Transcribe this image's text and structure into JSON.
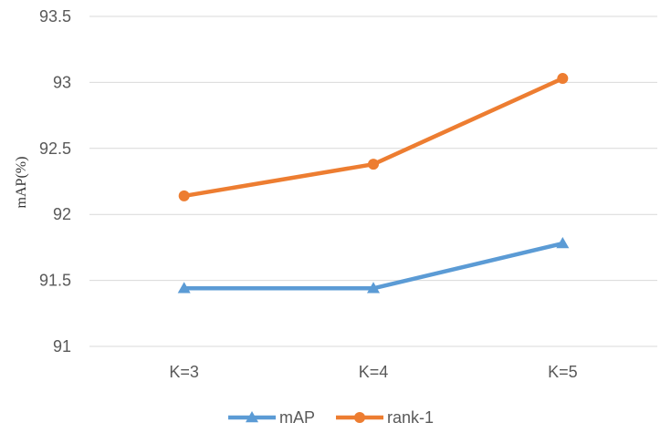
{
  "chart_data": {
    "type": "line",
    "title": "",
    "xlabel": "",
    "ylabel": "mAP(%)",
    "categories": [
      "K=3",
      "K=4",
      "K=5"
    ],
    "ylim": [
      91,
      93.5
    ],
    "yticks": [
      "91",
      "91.5",
      "92",
      "92.5",
      "93",
      "93.5"
    ],
    "grid": true,
    "legend_position": "bottom",
    "series": [
      {
        "name": "mAP",
        "values": [
          91.44,
          91.44,
          91.78
        ],
        "color": "#5b9bd5",
        "marker": "triangle"
      },
      {
        "name": "rank-1",
        "values": [
          92.14,
          92.38,
          93.03
        ],
        "color": "#ed7d31",
        "marker": "circle"
      }
    ]
  }
}
